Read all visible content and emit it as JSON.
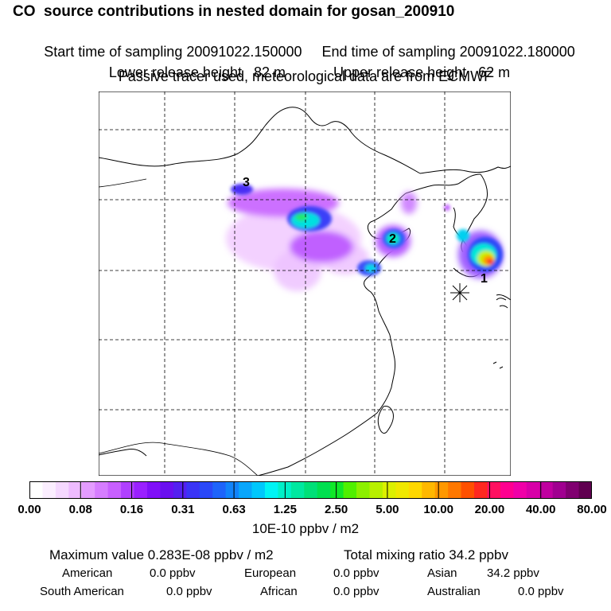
{
  "header": {
    "title": "CO  source contributions in nested domain for gosan_200910",
    "start_label": "Start time of sampling 20091022.150000",
    "end_label": "End time of sampling 20091022.180000",
    "lower_label": "Lower release height   82 m",
    "upper_label": "Upper release height   62 m",
    "tracer_note": "Passive tracer used, meteorological data are from ECMWF"
  },
  "map": {
    "markers": [
      {
        "label": "1"
      },
      {
        "label": "2"
      },
      {
        "label": "3"
      }
    ],
    "receptor_symbol": "star"
  },
  "colorbar": {
    "ticks": [
      "0.00",
      "0.08",
      "0.16",
      "0.31",
      "0.63",
      "1.25",
      "2.50",
      "5.00",
      "10.00",
      "20.00",
      "40.00",
      "80.00"
    ],
    "unit": "10E-10 ppbv / m2",
    "colors": [
      "#ffffff",
      "#fbeeff",
      "#f5d8ff",
      "#eebbff",
      "#e49cff",
      "#d67dff",
      "#c860ff",
      "#b040ff",
      "#9a20ff",
      "#8010f8",
      "#6a10f0",
      "#5420f0",
      "#3a34f6",
      "#2a48f8",
      "#1e64fa",
      "#1284fa",
      "#08a6fb",
      "#00c8fc",
      "#00f4f4",
      "#00f0c8",
      "#00e8a0",
      "#00e078",
      "#00e050",
      "#10e828",
      "#50f000",
      "#8cf000",
      "#b8f000",
      "#dcf000",
      "#f0e800",
      "#ffd800",
      "#ffb800",
      "#ff9800",
      "#ff7800",
      "#ff5000",
      "#ff2820",
      "#ff1060",
      "#ff0090",
      "#f000a8",
      "#d800a8",
      "#c000a0",
      "#a00090",
      "#800070",
      "#600050"
    ]
  },
  "stats": {
    "max_label": "Maximum value",
    "max_value": "0.283E-08 ppbv / m2",
    "total_label": "Total mixing ratio",
    "total_value": "34.2 ppbv",
    "regions": [
      {
        "name": "American",
        "value": "0.0 ppbv"
      },
      {
        "name": "European",
        "value": "0.0 ppbv"
      },
      {
        "name": "Asian",
        "value": "34.2 ppbv"
      },
      {
        "name": "South American",
        "value": "0.0 ppbv"
      },
      {
        "name": "African",
        "value": "0.0 ppbv"
      },
      {
        "name": "Australian",
        "value": "0.0 ppbv"
      }
    ]
  }
}
